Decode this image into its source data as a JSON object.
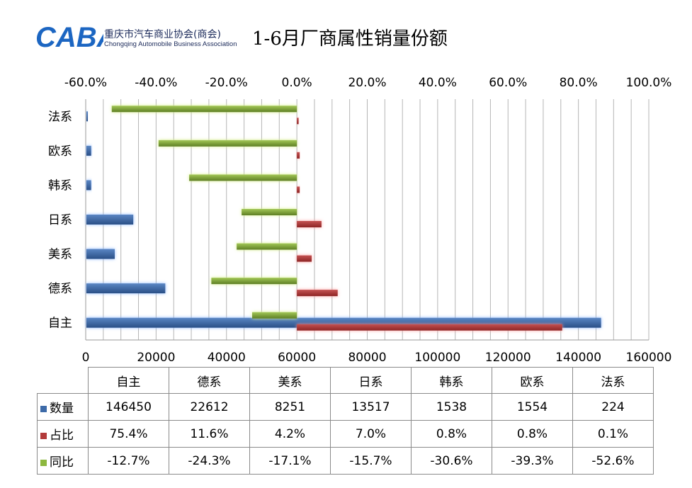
{
  "header": {
    "logo_text": "CABA",
    "logo_cn": "重庆市汽车商业协会(商会)",
    "logo_en": "Chongqing Automobile Business Association",
    "title": "1-6月厂商属性销量份额"
  },
  "colors": {
    "volume": "#3d6aa8",
    "share": "#b23a3a",
    "yoy": "#8db83f",
    "grid": "#b5b5b5"
  },
  "chart_data": {
    "type": "bar",
    "orientation": "horizontal",
    "categories": [
      "自主",
      "德系",
      "美系",
      "日系",
      "韩系",
      "欧系",
      "法系"
    ],
    "series": [
      {
        "name": "数量",
        "axis": "bottom",
        "values": [
          146450,
          22612,
          8251,
          13517,
          1538,
          1554,
          224
        ]
      },
      {
        "name": "占比",
        "axis": "top",
        "values": [
          75.4,
          11.6,
          4.2,
          7.0,
          0.8,
          0.8,
          0.1
        ]
      },
      {
        "name": "同比",
        "axis": "top",
        "values": [
          -12.7,
          -24.3,
          -17.1,
          -15.7,
          -30.6,
          -39.3,
          -52.6
        ]
      }
    ],
    "x_bottom": {
      "min": 0,
      "max": 160000,
      "ticks": [
        "0",
        "20000",
        "40000",
        "60000",
        "80000",
        "100000",
        "120000",
        "140000",
        "160000"
      ]
    },
    "x_top": {
      "min": -60,
      "max": 100,
      "ticks": [
        "-60.0%",
        "-40.0%",
        "-20.0%",
        "0.0%",
        "20.0%",
        "40.0%",
        "60.0%",
        "80.0%",
        "100.0%"
      ]
    },
    "grid": true,
    "legend": "table-below"
  },
  "table": {
    "headers": [
      "自主",
      "德系",
      "美系",
      "日系",
      "韩系",
      "欧系",
      "法系"
    ],
    "rows": [
      {
        "label": "数量",
        "values": [
          "146450",
          "22612",
          "8251",
          "13517",
          "1538",
          "1554",
          "224"
        ]
      },
      {
        "label": "占比",
        "values": [
          "75.4%",
          "11.6%",
          "4.2%",
          "7.0%",
          "0.8%",
          "0.8%",
          "0.1%"
        ]
      },
      {
        "label": "同比",
        "values": [
          "-12.7%",
          "-24.3%",
          "-17.1%",
          "-15.7%",
          "-30.6%",
          "-39.3%",
          "-52.6%"
        ]
      }
    ]
  }
}
